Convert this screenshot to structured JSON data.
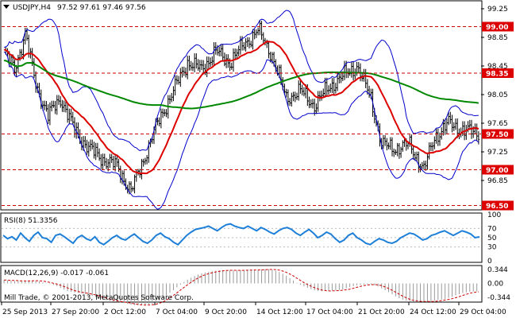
{
  "header": {
    "symbol_title": "USDJPY,H4",
    "ohlc": "97.52 97.61 97.46 97.56"
  },
  "price_axis": {
    "ticks": [
      "99.25",
      "98.85",
      "98.45",
      "98.05",
      "97.65",
      "97.25",
      "96.85"
    ],
    "levels": [
      {
        "label": "99.00",
        "value": 99.0,
        "color": "#cc0000"
      },
      {
        "label": "98.35",
        "value": 98.35,
        "color": "#cc0000"
      },
      {
        "label": "97.50",
        "value": 97.5,
        "color": "#cc0000"
      },
      {
        "label": "97.00",
        "value": 97.0,
        "color": "#cc0000"
      },
      {
        "label": "96.50",
        "value": 96.5,
        "color": "#cc0000"
      }
    ],
    "range": [
      96.45,
      99.35
    ]
  },
  "rsi": {
    "title": "RSI(8) 51.3356",
    "ticks": [
      "100",
      "70",
      "50",
      "30",
      "0"
    ],
    "values": [
      55,
      48,
      52,
      45,
      60,
      50,
      42,
      55,
      62,
      50,
      48,
      40,
      55,
      58,
      52,
      45,
      38,
      50,
      55,
      48,
      44,
      52,
      40,
      35,
      42,
      50,
      55,
      48,
      45,
      52,
      58,
      50,
      42,
      38,
      45,
      55,
      60,
      52,
      48,
      40,
      35,
      45,
      55,
      62,
      68,
      70,
      72,
      75,
      70,
      65,
      72,
      78,
      80,
      75,
      72,
      70,
      75,
      70,
      65,
      72,
      68,
      62,
      58,
      65,
      70,
      72,
      68,
      60,
      55,
      62,
      68,
      60,
      50,
      55,
      62,
      58,
      48,
      40,
      45,
      55,
      60,
      50,
      45,
      38,
      35,
      42,
      48,
      45,
      40,
      38,
      42,
      50,
      55,
      60,
      58,
      52,
      45,
      48,
      55,
      58,
      62,
      65,
      60,
      55,
      60,
      65,
      62,
      58,
      50,
      52
    ]
  },
  "macd": {
    "title": "MACD(12,26,9) -0.017 -0.061",
    "ticks": [
      "0.344",
      "0.00",
      "-0.344"
    ],
    "range": [
      -0.42,
      0.4
    ]
  },
  "footer": {
    "copyright": "Mill Trade, © 2001-2013, MetaQuotes Software Corp."
  },
  "time_axis": {
    "labels": [
      "25 Sep 2013",
      "27 Sep 20:00",
      "2 Oct 12:00",
      "7 Oct 04:00",
      "9 Oct 20:00",
      "14 Oct 12:00",
      "17 Oct 04:00",
      "21 Oct 20:00",
      "24 Oct 12:00",
      "29 Oct 04:00"
    ]
  },
  "colors": {
    "bollinger": "#0000cc",
    "ma_fast": "#dd0000",
    "ma_slow": "#008800",
    "candle": "#000000",
    "rsi": "#1e7fd8",
    "macd_hist": "#999999",
    "macd_signal": "#cc0000",
    "level_label_bg": "#dd0000",
    "current_price_bg": "#dd0000"
  }
}
